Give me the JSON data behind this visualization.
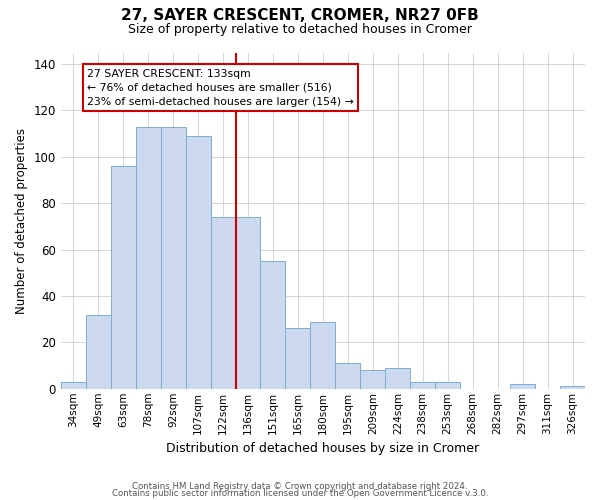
{
  "title_line1": "27, SAYER CRESCENT, CROMER, NR27 0FB",
  "title_line2": "Size of property relative to detached houses in Cromer",
  "xlabel": "Distribution of detached houses by size in Cromer",
  "ylabel": "Number of detached properties",
  "categories": [
    "34sqm",
    "49sqm",
    "63sqm",
    "78sqm",
    "92sqm",
    "107sqm",
    "122sqm",
    "136sqm",
    "151sqm",
    "165sqm",
    "180sqm",
    "195sqm",
    "209sqm",
    "224sqm",
    "238sqm",
    "253sqm",
    "268sqm",
    "282sqm",
    "297sqm",
    "311sqm",
    "326sqm"
  ],
  "values": [
    3,
    32,
    96,
    113,
    113,
    109,
    74,
    74,
    55,
    26,
    29,
    11,
    8,
    9,
    3,
    3,
    0,
    0,
    2,
    0,
    1
  ],
  "bar_color": "#ccd9ee",
  "bar_edge_color": "#7bafd4",
  "vline_color": "#cc0000",
  "annotation_title": "27 SAYER CRESCENT: 133sqm",
  "annotation_line2": "← 76% of detached houses are smaller (516)",
  "annotation_line3": "23% of semi-detached houses are larger (154) →",
  "annotation_box_edge": "#cc0000",
  "ylim": [
    0,
    145
  ],
  "yticks": [
    0,
    20,
    40,
    60,
    80,
    100,
    120,
    140
  ],
  "footer_line1": "Contains HM Land Registry data © Crown copyright and database right 2024.",
  "footer_line2": "Contains public sector information licensed under the Open Government Licence v.3.0."
}
